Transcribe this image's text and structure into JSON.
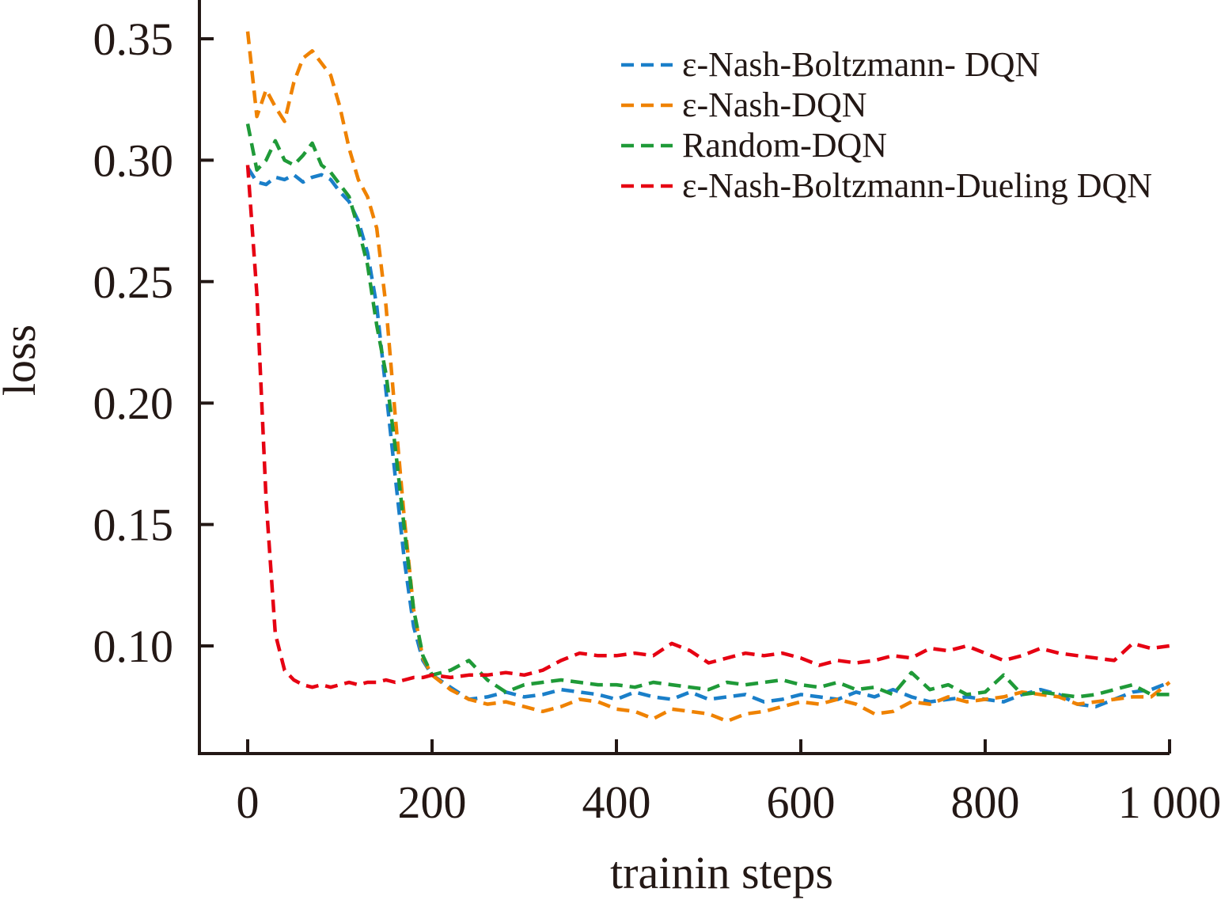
{
  "chart_data": {
    "type": "line",
    "xlabel": "trainin steps",
    "ylabel": "loss",
    "xlim": [
      -100,
      1000
    ],
    "ylim": [
      0.055,
      0.365
    ],
    "x_ticks": [
      0,
      200,
      400,
      600,
      800,
      1000
    ],
    "x_tick_labels": [
      "0",
      "200",
      "400",
      "600",
      "800",
      "1 000"
    ],
    "y_ticks": [
      0.1,
      0.15,
      0.2,
      0.25,
      0.3,
      0.35
    ],
    "y_tick_labels": [
      "0.10",
      "0.15",
      "0.20",
      "0.25",
      "0.30",
      "0.35"
    ],
    "grid": false,
    "legend_position": "top-right",
    "series": [
      {
        "name": "ε-Nash-Boltzmann- DQN",
        "color": "#1a7fc9",
        "x": [
          0,
          10,
          20,
          30,
          40,
          50,
          60,
          70,
          80,
          90,
          100,
          110,
          120,
          130,
          140,
          150,
          160,
          170,
          180,
          190,
          200,
          220,
          240,
          260,
          280,
          300,
          320,
          340,
          360,
          380,
          400,
          420,
          440,
          460,
          480,
          500,
          520,
          540,
          560,
          580,
          600,
          620,
          640,
          660,
          680,
          700,
          720,
          740,
          760,
          780,
          800,
          820,
          840,
          860,
          880,
          900,
          920,
          940,
          960,
          980,
          1000
        ],
        "values": [
          0.297,
          0.291,
          0.29,
          0.293,
          0.292,
          0.294,
          0.291,
          0.293,
          0.294,
          0.292,
          0.287,
          0.283,
          0.275,
          0.262,
          0.24,
          0.205,
          0.17,
          0.135,
          0.108,
          0.094,
          0.088,
          0.083,
          0.078,
          0.079,
          0.081,
          0.079,
          0.08,
          0.082,
          0.081,
          0.08,
          0.078,
          0.081,
          0.079,
          0.078,
          0.081,
          0.078,
          0.079,
          0.08,
          0.077,
          0.078,
          0.08,
          0.079,
          0.078,
          0.081,
          0.079,
          0.082,
          0.079,
          0.077,
          0.078,
          0.079,
          0.078,
          0.077,
          0.08,
          0.082,
          0.08,
          0.076,
          0.075,
          0.078,
          0.081,
          0.082,
          0.085
        ]
      },
      {
        "name": "ε-Nash-DQN",
        "color": "#ef8200",
        "x": [
          0,
          10,
          20,
          30,
          40,
          50,
          60,
          70,
          80,
          90,
          100,
          110,
          120,
          130,
          140,
          150,
          160,
          170,
          180,
          190,
          200,
          220,
          240,
          260,
          280,
          300,
          320,
          340,
          360,
          380,
          400,
          420,
          440,
          460,
          480,
          500,
          520,
          540,
          560,
          580,
          600,
          620,
          640,
          660,
          680,
          700,
          720,
          740,
          760,
          780,
          800,
          820,
          840,
          860,
          880,
          900,
          920,
          940,
          960,
          980,
          1000
        ],
        "values": [
          0.353,
          0.318,
          0.329,
          0.322,
          0.316,
          0.332,
          0.342,
          0.345,
          0.34,
          0.335,
          0.322,
          0.305,
          0.292,
          0.285,
          0.272,
          0.24,
          0.195,
          0.152,
          0.115,
          0.095,
          0.088,
          0.082,
          0.078,
          0.076,
          0.077,
          0.075,
          0.073,
          0.075,
          0.078,
          0.077,
          0.074,
          0.073,
          0.07,
          0.074,
          0.073,
          0.072,
          0.069,
          0.072,
          0.073,
          0.075,
          0.077,
          0.076,
          0.078,
          0.076,
          0.072,
          0.073,
          0.077,
          0.076,
          0.079,
          0.077,
          0.078,
          0.079,
          0.081,
          0.08,
          0.079,
          0.076,
          0.077,
          0.078,
          0.079,
          0.079,
          0.085
        ]
      },
      {
        "name": "Random-DQN",
        "color": "#1f9a38",
        "x": [
          0,
          10,
          20,
          30,
          40,
          50,
          60,
          70,
          80,
          90,
          100,
          110,
          120,
          130,
          140,
          150,
          160,
          170,
          180,
          190,
          200,
          220,
          240,
          260,
          280,
          300,
          320,
          340,
          360,
          380,
          400,
          420,
          440,
          460,
          480,
          500,
          520,
          540,
          560,
          580,
          600,
          620,
          640,
          660,
          680,
          700,
          720,
          740,
          760,
          780,
          800,
          820,
          840,
          860,
          880,
          900,
          920,
          940,
          960,
          980,
          1000
        ],
        "values": [
          0.315,
          0.296,
          0.3,
          0.308,
          0.3,
          0.298,
          0.302,
          0.307,
          0.298,
          0.295,
          0.29,
          0.285,
          0.272,
          0.257,
          0.232,
          0.212,
          0.182,
          0.148,
          0.115,
          0.096,
          0.088,
          0.09,
          0.094,
          0.086,
          0.081,
          0.084,
          0.085,
          0.086,
          0.085,
          0.084,
          0.084,
          0.083,
          0.085,
          0.084,
          0.083,
          0.082,
          0.085,
          0.084,
          0.085,
          0.086,
          0.084,
          0.083,
          0.085,
          0.082,
          0.083,
          0.08,
          0.089,
          0.082,
          0.084,
          0.08,
          0.081,
          0.088,
          0.08,
          0.081,
          0.08,
          0.079,
          0.08,
          0.082,
          0.084,
          0.08,
          0.08
        ]
      },
      {
        "name": "ε-Nash-Boltzmann-Dueling DQN",
        "color": "#e60012",
        "x": [
          0,
          10,
          20,
          30,
          40,
          50,
          60,
          70,
          80,
          90,
          100,
          110,
          120,
          130,
          140,
          150,
          160,
          170,
          180,
          190,
          200,
          220,
          240,
          260,
          280,
          300,
          320,
          340,
          360,
          380,
          400,
          420,
          440,
          460,
          480,
          500,
          520,
          540,
          560,
          580,
          600,
          620,
          640,
          660,
          680,
          700,
          720,
          740,
          760,
          780,
          800,
          820,
          840,
          860,
          880,
          900,
          920,
          940,
          960,
          980,
          1000
        ],
        "values": [
          0.298,
          0.245,
          0.16,
          0.105,
          0.09,
          0.086,
          0.084,
          0.083,
          0.084,
          0.083,
          0.084,
          0.085,
          0.084,
          0.085,
          0.085,
          0.086,
          0.085,
          0.086,
          0.087,
          0.087,
          0.088,
          0.087,
          0.088,
          0.088,
          0.089,
          0.088,
          0.09,
          0.094,
          0.097,
          0.096,
          0.096,
          0.097,
          0.096,
          0.101,
          0.098,
          0.093,
          0.095,
          0.097,
          0.096,
          0.097,
          0.095,
          0.092,
          0.094,
          0.093,
          0.094,
          0.096,
          0.095,
          0.099,
          0.098,
          0.1,
          0.097,
          0.094,
          0.096,
          0.099,
          0.097,
          0.096,
          0.095,
          0.094,
          0.101,
          0.099,
          0.1
        ]
      }
    ]
  }
}
